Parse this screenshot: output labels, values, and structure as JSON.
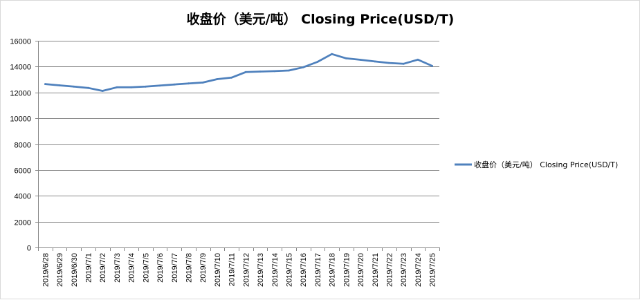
{
  "chart_data": {
    "type": "line",
    "title": "收盘价（美元/吨） Closing Price(USD/T)",
    "xlabel": "",
    "ylabel": "",
    "ylim": [
      0,
      16000
    ],
    "yticks": [
      0,
      2000,
      4000,
      6000,
      8000,
      10000,
      12000,
      14000,
      16000
    ],
    "grid": true,
    "legend_position": "right",
    "categories": [
      "2019/6/28",
      "2019/6/29",
      "2019/6/30",
      "2019/7/1",
      "2019/7/2",
      "2019/7/3",
      "2019/7/4",
      "2019/7/5",
      "2019/7/6",
      "2019/7/7",
      "2019/7/8",
      "2019/7/9",
      "2019/7/10",
      "2019/7/11",
      "2019/7/12",
      "2019/7/13",
      "2019/7/14",
      "2019/7/15",
      "2019/7/16",
      "2019/7/17",
      "2019/7/18",
      "2019/7/19",
      "2019/7/20",
      "2019/7/21",
      "2019/7/22",
      "2019/7/23",
      "2019/7/24",
      "2019/7/25"
    ],
    "series": [
      {
        "name": "收盘价（美元/吨） Closing Price(USD/T)",
        "color": "#4f81bd",
        "values": [
          12650,
          12550,
          12450,
          12350,
          12120,
          12400,
          12400,
          12450,
          12530,
          12620,
          12700,
          12770,
          13030,
          13150,
          13580,
          13620,
          13650,
          13700,
          13950,
          14370,
          14970,
          14640,
          14530,
          14400,
          14280,
          14220,
          14540,
          14050
        ]
      }
    ]
  }
}
